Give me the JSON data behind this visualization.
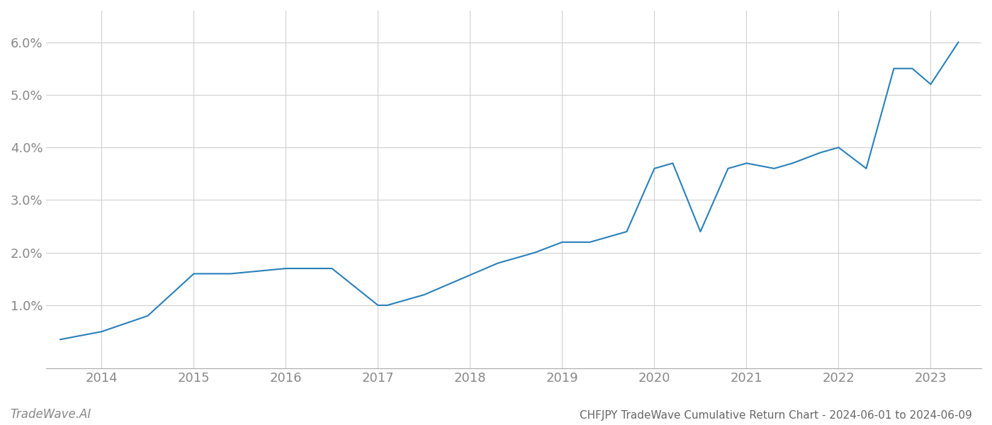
{
  "x_years": [
    2013.55,
    2014.0,
    2014.5,
    2015.0,
    2015.4,
    2016.0,
    2016.5,
    2017.0,
    2017.1,
    2017.5,
    2017.9,
    2018.3,
    2018.7,
    2019.0,
    2019.3,
    2019.7,
    2020.0,
    2020.2,
    2020.5,
    2020.8,
    2021.0,
    2021.3,
    2021.5,
    2021.8,
    2022.0,
    2022.3,
    2022.6,
    2022.8,
    2023.0,
    2023.3
  ],
  "y_values": [
    0.0035,
    0.005,
    0.008,
    0.016,
    0.016,
    0.017,
    0.017,
    0.01,
    0.01,
    0.012,
    0.015,
    0.018,
    0.02,
    0.022,
    0.022,
    0.024,
    0.036,
    0.037,
    0.024,
    0.036,
    0.037,
    0.036,
    0.037,
    0.039,
    0.04,
    0.036,
    0.055,
    0.055,
    0.052,
    0.06
  ],
  "line_color": "#2980b9",
  "line_width": 1.5,
  "background_color": "#ffffff",
  "grid_color": "#d0d0d0",
  "title": "CHFJPY TradeWave Cumulative Return Chart - 2024-06-01 to 2024-06-09",
  "watermark": "TradeWave.AI",
  "xlim": [
    2013.4,
    2023.55
  ],
  "ylim": [
    -0.002,
    0.066
  ],
  "yticks": [
    0.01,
    0.02,
    0.03,
    0.04,
    0.05,
    0.06
  ],
  "ytick_labels": [
    "1.0%",
    "2.0%",
    "3.0%",
    "4.0%",
    "5.0%",
    "6.0%"
  ],
  "xticks": [
    2014,
    2015,
    2016,
    2017,
    2018,
    2019,
    2020,
    2021,
    2022,
    2023
  ],
  "xtick_labels": [
    "2014",
    "2015",
    "2016",
    "2017",
    "2018",
    "2019",
    "2020",
    "2021",
    "2022",
    "2023"
  ],
  "tick_color": "#888888",
  "axis_color": "#aaaaaa",
  "title_color": "#666666",
  "watermark_color": "#888888",
  "tick_fontsize": 13,
  "title_fontsize": 11,
  "watermark_fontsize": 12
}
